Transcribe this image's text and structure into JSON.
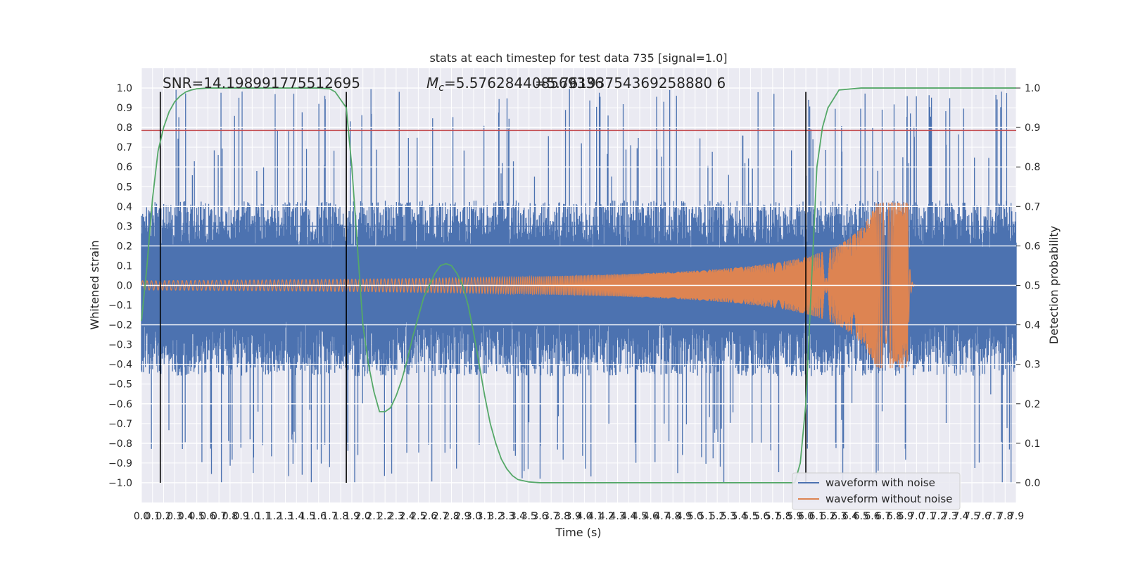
{
  "chart_data": {
    "type": "line",
    "title": "stats at each timestep for test data 735 [signal=1.0]",
    "xlabel": "Time (s)",
    "ylabel_left": "Whitened strain",
    "ylabel_right": "Detection probability",
    "xlim": [
      0.0,
      7.9
    ],
    "ylim_left": [
      -1.1,
      1.1
    ],
    "ylim_right": [
      -0.05,
      1.05
    ],
    "grid": true,
    "legend_position": "bottom-right",
    "x_tick_labels": [
      "0.0",
      "0.1",
      "0.2",
      "0.3",
      "0.4",
      "0.5",
      "0.6",
      "0.7",
      "0.8",
      "0.9",
      "1.0",
      "1.1",
      "1.2",
      "1.3",
      "1.4",
      "1.5",
      "1.6",
      "1.7",
      "1.8",
      "1.9",
      "2.0",
      "2.1",
      "2.2",
      "2.3",
      "2.4",
      "2.5",
      "2.6",
      "2.7",
      "2.8",
      "2.9",
      "3.0",
      "3.1",
      "3.2",
      "3.3",
      "3.4",
      "3.5",
      "3.6",
      "3.7",
      "3.8",
      "3.9",
      "4.0",
      "4.1",
      "4.2",
      "4.3",
      "4.4",
      "4.5",
      "4.6",
      "4.7",
      "4.8",
      "4.9",
      "5.0",
      "5.1",
      "5.2",
      "5.3",
      "5.4",
      "5.5",
      "5.6",
      "5.7",
      "5.8",
      "5.9",
      "6.0",
      "6.1",
      "6.2",
      "6.3",
      "6.4",
      "6.5",
      "6.6",
      "6.7",
      "6.8",
      "6.9",
      "7.0",
      "7.1",
      "7.2",
      "7.3",
      "7.4",
      "7.5",
      "7.6",
      "7.7",
      "7.8",
      "7.9"
    ],
    "y_left_tick_labels": [
      "1.0",
      "0.9",
      "0.8",
      "0.7",
      "0.6",
      "0.5",
      "0.4",
      "0.3",
      "0.2",
      "0.1",
      "0.0",
      "−0.1",
      "−0.2",
      "−0.3",
      "−0.4",
      "−0.5",
      "−0.6",
      "−0.7",
      "−0.8",
      "−0.9",
      "−1.0"
    ],
    "y_right_tick_labels": [
      "1.0",
      "0.9",
      "0.8",
      "0.7",
      "0.6",
      "0.5",
      "0.4",
      "0.3",
      "0.2",
      "0.1",
      "0.0"
    ],
    "annotations": {
      "snr": "SNR=14.198991775512695",
      "mc_symbol": "M",
      "mc_sub": "c",
      "mc_value": "=5.576284408569336",
      "overlap_text": "=5.76193754369258880 6"
    },
    "threshold_line": {
      "y": 0.785,
      "color": "#c44e52"
    },
    "vertical_markers_x": [
      0.17,
      1.85,
      6.0
    ],
    "series": [
      {
        "name": "waveform with noise",
        "color": "#4c72b0",
        "description": "noise-dominated strain spanning roughly ±0.4 with spikes to ±1.0"
      },
      {
        "name": "waveform without noise",
        "color": "#dd8452",
        "description": "chirp signal, amplitude ~0.03 growing to ~0.42 near 6.9 s, then ring-down to 0",
        "chirp_peak_time": 6.92,
        "chirp_peak_amplitude": 0.42
      },
      {
        "name": "detection probability",
        "color": "#55a868",
        "axis": "right",
        "x": [
          0.0,
          0.05,
          0.1,
          0.15,
          0.2,
          0.25,
          0.3,
          0.35,
          0.4,
          0.45,
          0.5,
          0.6,
          0.8,
          1.0,
          1.2,
          1.4,
          1.6,
          1.7,
          1.75,
          1.8,
          1.85,
          1.9,
          1.95,
          2.0,
          2.05,
          2.1,
          2.15,
          2.2,
          2.25,
          2.3,
          2.35,
          2.4,
          2.45,
          2.5,
          2.55,
          2.6,
          2.65,
          2.7,
          2.75,
          2.8,
          2.85,
          2.9,
          2.95,
          3.0,
          3.05,
          3.1,
          3.15,
          3.2,
          3.25,
          3.3,
          3.35,
          3.4,
          3.5,
          3.6,
          4.0,
          5.0,
          5.6,
          5.8,
          5.9,
          5.95,
          6.0,
          6.05,
          6.1,
          6.15,
          6.2,
          6.3,
          6.5,
          7.0,
          7.9
        ],
        "y": [
          0.41,
          0.55,
          0.72,
          0.84,
          0.9,
          0.94,
          0.965,
          0.98,
          0.99,
          0.995,
          0.998,
          1.0,
          1.0,
          1.0,
          1.0,
          1.0,
          1.0,
          0.998,
          0.99,
          0.97,
          0.95,
          0.8,
          0.6,
          0.4,
          0.3,
          0.23,
          0.18,
          0.18,
          0.19,
          0.22,
          0.26,
          0.31,
          0.37,
          0.42,
          0.47,
          0.5,
          0.53,
          0.55,
          0.555,
          0.55,
          0.53,
          0.5,
          0.45,
          0.38,
          0.3,
          0.22,
          0.15,
          0.1,
          0.06,
          0.035,
          0.018,
          0.008,
          0.002,
          0.0,
          0.0,
          0.0,
          0.0,
          0.0,
          0.0,
          0.05,
          0.2,
          0.5,
          0.8,
          0.9,
          0.95,
          0.995,
          1.0,
          1.0,
          1.0
        ]
      }
    ],
    "legend": [
      "waveform with noise",
      "waveform without noise"
    ]
  }
}
